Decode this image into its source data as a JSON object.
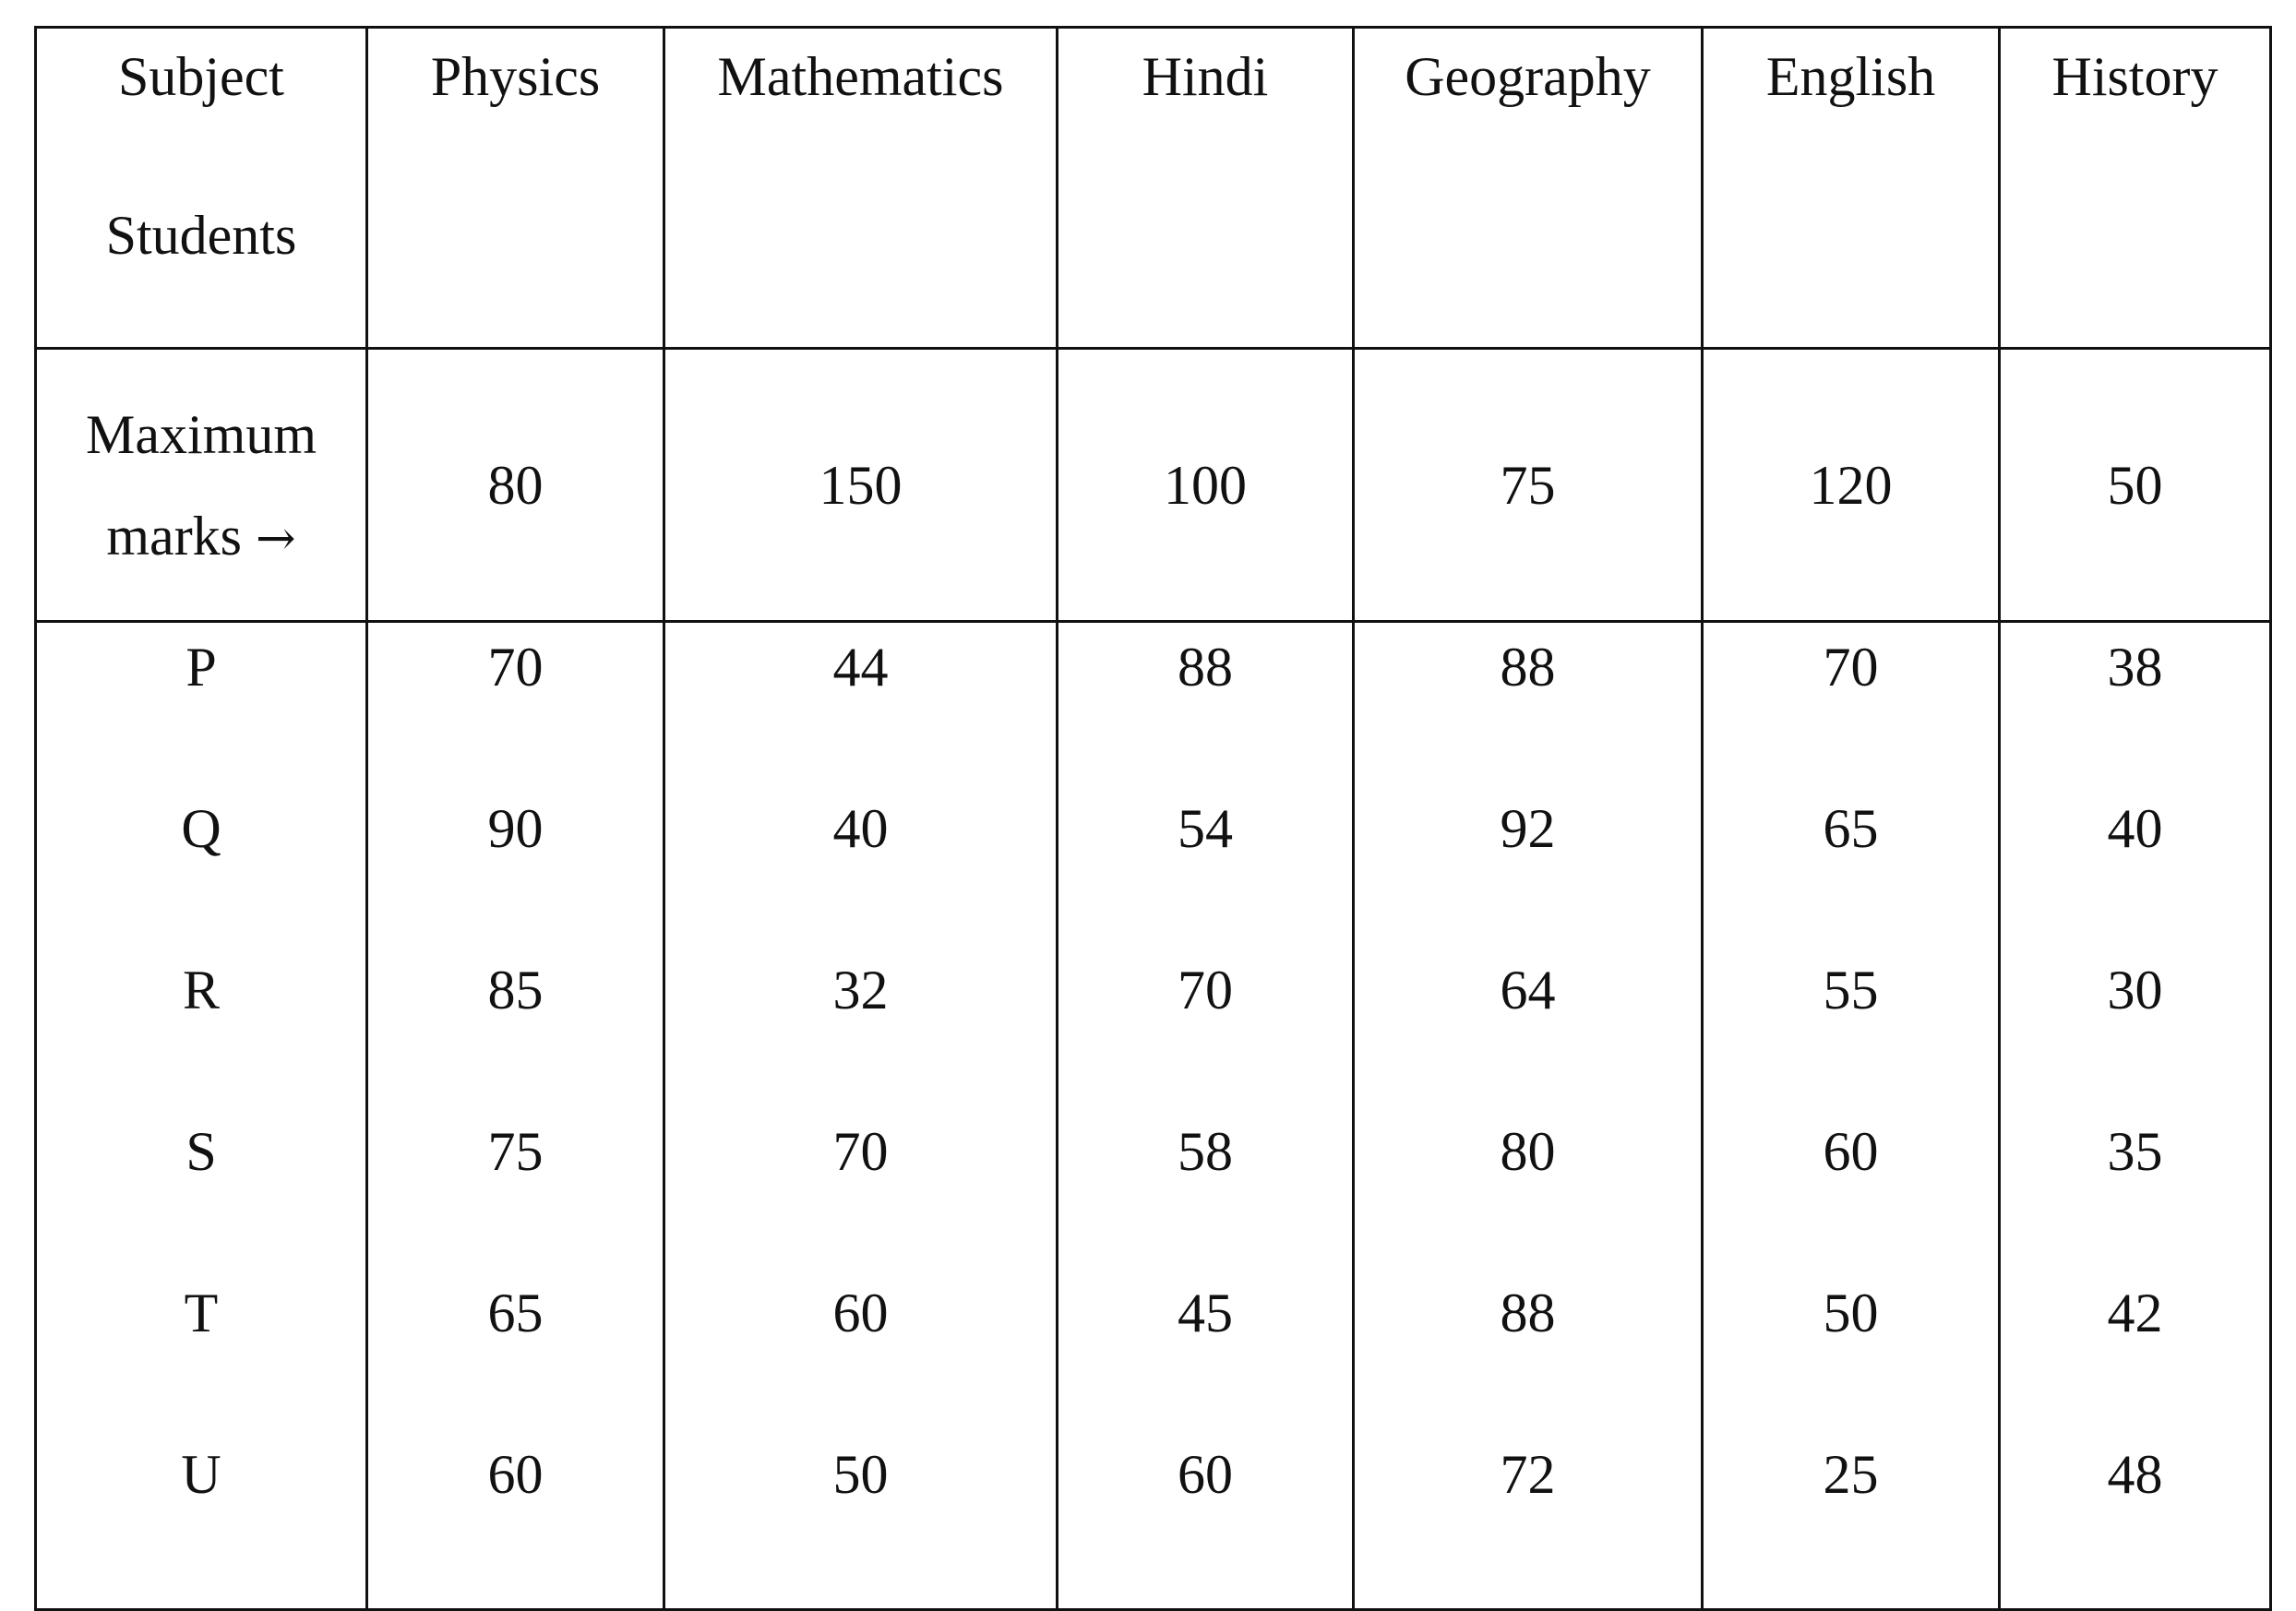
{
  "table": {
    "corner": {
      "line1": "Subject",
      "line2": "Students"
    },
    "subjects": [
      "Physics",
      "Mathematics",
      "Hindi",
      "Geography",
      "English",
      "History"
    ],
    "max_marks_label": {
      "line1": "Maximum",
      "line2": "marks",
      "arrow": "→"
    },
    "max_marks": [
      "80",
      "150",
      "100",
      "75",
      "120",
      "50"
    ],
    "students": [
      "P",
      "Q",
      "R",
      "S",
      "T",
      "U"
    ],
    "marks_by_subject": [
      [
        "70",
        "90",
        "85",
        "75",
        "65",
        "60"
      ],
      [
        "44",
        "40",
        "32",
        "70",
        "60",
        "50"
      ],
      [
        "88",
        "54",
        "70",
        "58",
        "45",
        "60"
      ],
      [
        "88",
        "92",
        "64",
        "80",
        "88",
        "72"
      ],
      [
        "70",
        "65",
        "55",
        "60",
        "50",
        "25"
      ],
      [
        "38",
        "40",
        "30",
        "35",
        "42",
        "48"
      ]
    ]
  }
}
